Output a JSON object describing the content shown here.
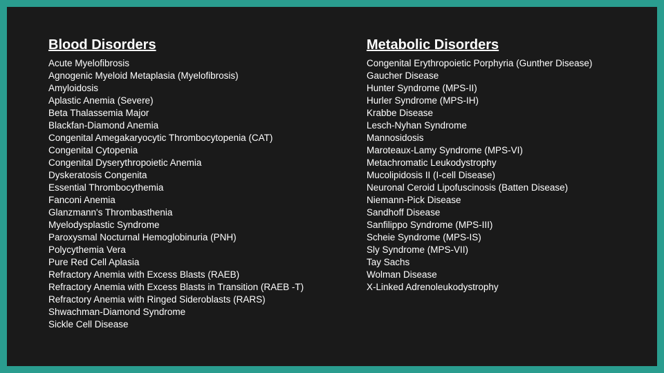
{
  "background_color": "#2a9d8f",
  "slide_background": "#1a1a1a",
  "text_color": "#ffffff",
  "heading_fontsize": 20,
  "item_fontsize": 13.5,
  "columns": [
    {
      "heading": "Blood Disorders",
      "items": [
        "Acute Myelofibrosis",
        "Agnogenic Myeloid Metaplasia (Myelofibrosis)",
        "Amyloidosis",
        "Aplastic Anemia (Severe)",
        "Beta Thalassemia Major",
        "Blackfan-Diamond Anemia",
        "Congenital Amegakaryocytic Thrombocytopenia (CAT)",
        "Congenital Cytopenia",
        "Congenital Dyserythropoietic Anemia",
        "Dyskeratosis Congenita",
        "Essential Thrombocythemia",
        "Fanconi Anemia",
        "Glanzmann's Thrombasthenia",
        "Myelodysplastic Syndrome",
        "Paroxysmal Nocturnal Hemoglobinuria (PNH)",
        "Polycythemia Vera",
        "Pure Red Cell Aplasia",
        "Refractory Anemia with Excess Blasts (RAEB)",
        "Refractory Anemia with Excess Blasts in Transition (RAEB -T)",
        "Refractory Anemia with Ringed Sideroblasts (RARS)",
        "Shwachman-Diamond Syndrome",
        "Sickle Cell Disease"
      ]
    },
    {
      "heading": "Metabolic Disorders",
      "items": [
        "Congenital Erythropoietic Porphyria (Gunther Disease)",
        "Gaucher Disease",
        "Hunter Syndrome (MPS-II)",
        "Hurler Syndrome (MPS-IH)",
        "Krabbe Disease",
        "Lesch-Nyhan Syndrome",
        "Mannosidosis",
        "Maroteaux-Lamy Syndrome (MPS-VI)",
        "Metachromatic Leukodystrophy",
        "Mucolipidosis II (I-cell Disease)",
        "Neuronal Ceroid Lipofuscinosis (Batten Disease)",
        "Niemann-Pick Disease",
        "Sandhoff Disease",
        "Sanfilippo Syndrome (MPS-III)",
        "Scheie Syndrome (MPS-IS)",
        "Sly Syndrome (MPS-VII)",
        "Tay Sachs",
        "Wolman Disease",
        "X-Linked Adrenoleukodystrophy"
      ]
    }
  ]
}
